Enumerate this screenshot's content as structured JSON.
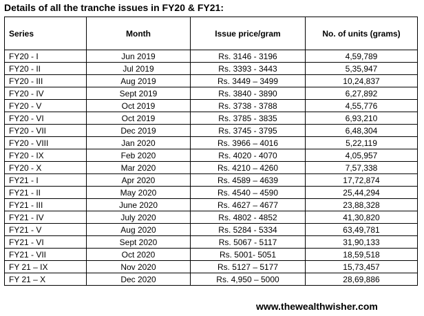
{
  "title": "Details of all the tranche issues in FY20 & FY21:",
  "columns": [
    "Series",
    "Month",
    "Issue price/gram",
    "No. of units (grams)"
  ],
  "rows": [
    [
      "FY20 - I",
      "Jun 2019",
      "Rs. 3146 - 3196",
      "4,59,789"
    ],
    [
      "FY20 - II",
      "Jul 2019",
      "Rs. 3393 - 3443",
      "5,35,947"
    ],
    [
      "FY20 - III",
      "Aug 2019",
      "Rs. 3449 – 3499",
      "10,24,837"
    ],
    [
      "FY20 - IV",
      "Sept 2019",
      "Rs. 3840 - 3890",
      "6,27,892"
    ],
    [
      "FY20 - V",
      "Oct 2019",
      "Rs. 3738 - 3788",
      "4,55,776"
    ],
    [
      "FY20 - VI",
      "Oct 2019",
      "Rs. 3785 - 3835",
      "6,93,210"
    ],
    [
      "FY20 - VII",
      "Dec 2019",
      "Rs. 3745 - 3795",
      "6,48,304"
    ],
    [
      "FY20 - VIII",
      "Jan 2020",
      "Rs. 3966 – 4016",
      "5,22,119"
    ],
    [
      "FY20 - IX",
      "Feb 2020",
      "Rs. 4020 - 4070",
      "4,05,957"
    ],
    [
      "FY20 - X",
      "Mar 2020",
      "Rs. 4210 – 4260",
      "7,57,338"
    ],
    [
      "FY21 - I",
      "Apr 2020",
      "Rs. 4589 – 4639",
      "17,72,874"
    ],
    [
      "FY21 - II",
      "May 2020",
      "Rs. 4540 – 4590",
      "25,44,294"
    ],
    [
      "FY21 - III",
      "June 2020",
      "Rs. 4627 – 4677",
      "23,88,328"
    ],
    [
      "FY21 - IV",
      "July 2020",
      "Rs. 4802 - 4852",
      "41,30,820"
    ],
    [
      "FY21 - V",
      "Aug 2020",
      "Rs. 5284 - 5334",
      "63,49,781"
    ],
    [
      "FY21 - VI",
      "Sept 2020",
      "Rs. 5067 - 5117",
      "31,90,133"
    ],
    [
      "FY21 - VII",
      "Oct 2020",
      "Rs. 5001- 5051",
      "18,59,518"
    ],
    [
      "FY 21 – IX",
      "Nov 2020",
      "Rs. 5127 – 5177",
      "15,73,457"
    ],
    [
      "FY 21 – X",
      "Dec 2020",
      "Rs. 4,950 – 5000",
      "28,69,886"
    ]
  ],
  "footer": "www.thewealthwisher.com"
}
